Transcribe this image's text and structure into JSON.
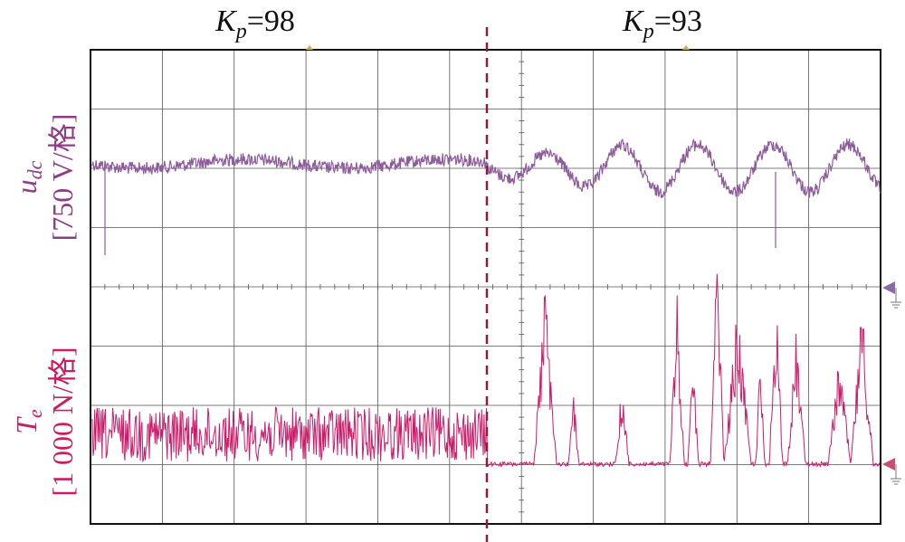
{
  "chart_data": {
    "type": "line",
    "subtype": "oscilloscope-trace",
    "panels": [
      {
        "label": {
          "symbol": "K",
          "subscript": "p",
          "value": "=98"
        },
        "side": "left"
      },
      {
        "label": {
          "symbol": "K",
          "subscript": "p",
          "value": "=93"
        },
        "side": "right"
      }
    ],
    "channels": [
      {
        "name": "u_dc",
        "label_symbol": "u",
        "label_subscript": "dc",
        "scale_label": "[750 V/格]",
        "color": "#8e5b9c",
        "marker_color": "#8a6aa8",
        "behavior_left": "small oscillation around baseline, one downward spike near start",
        "behavior_right": "growing sinusoidal oscillation (~6 cycles), one downward spike near end"
      },
      {
        "name": "T_e",
        "label_symbol": "T",
        "label_subscript": "e",
        "scale_label": "[1 000 N/格]",
        "color": "#cc1b6a",
        "marker_color": "#c8506e",
        "behavior_left": "dense noisy signal around ~0.5 div above reference",
        "behavior_right": "mostly at reference with intermittent large bursts up to ~3 div"
      }
    ],
    "grid": {
      "columns": 11,
      "rows": 8,
      "visible": true
    },
    "divider": {
      "style": "dashed",
      "color": "#8c1d3e"
    }
  }
}
